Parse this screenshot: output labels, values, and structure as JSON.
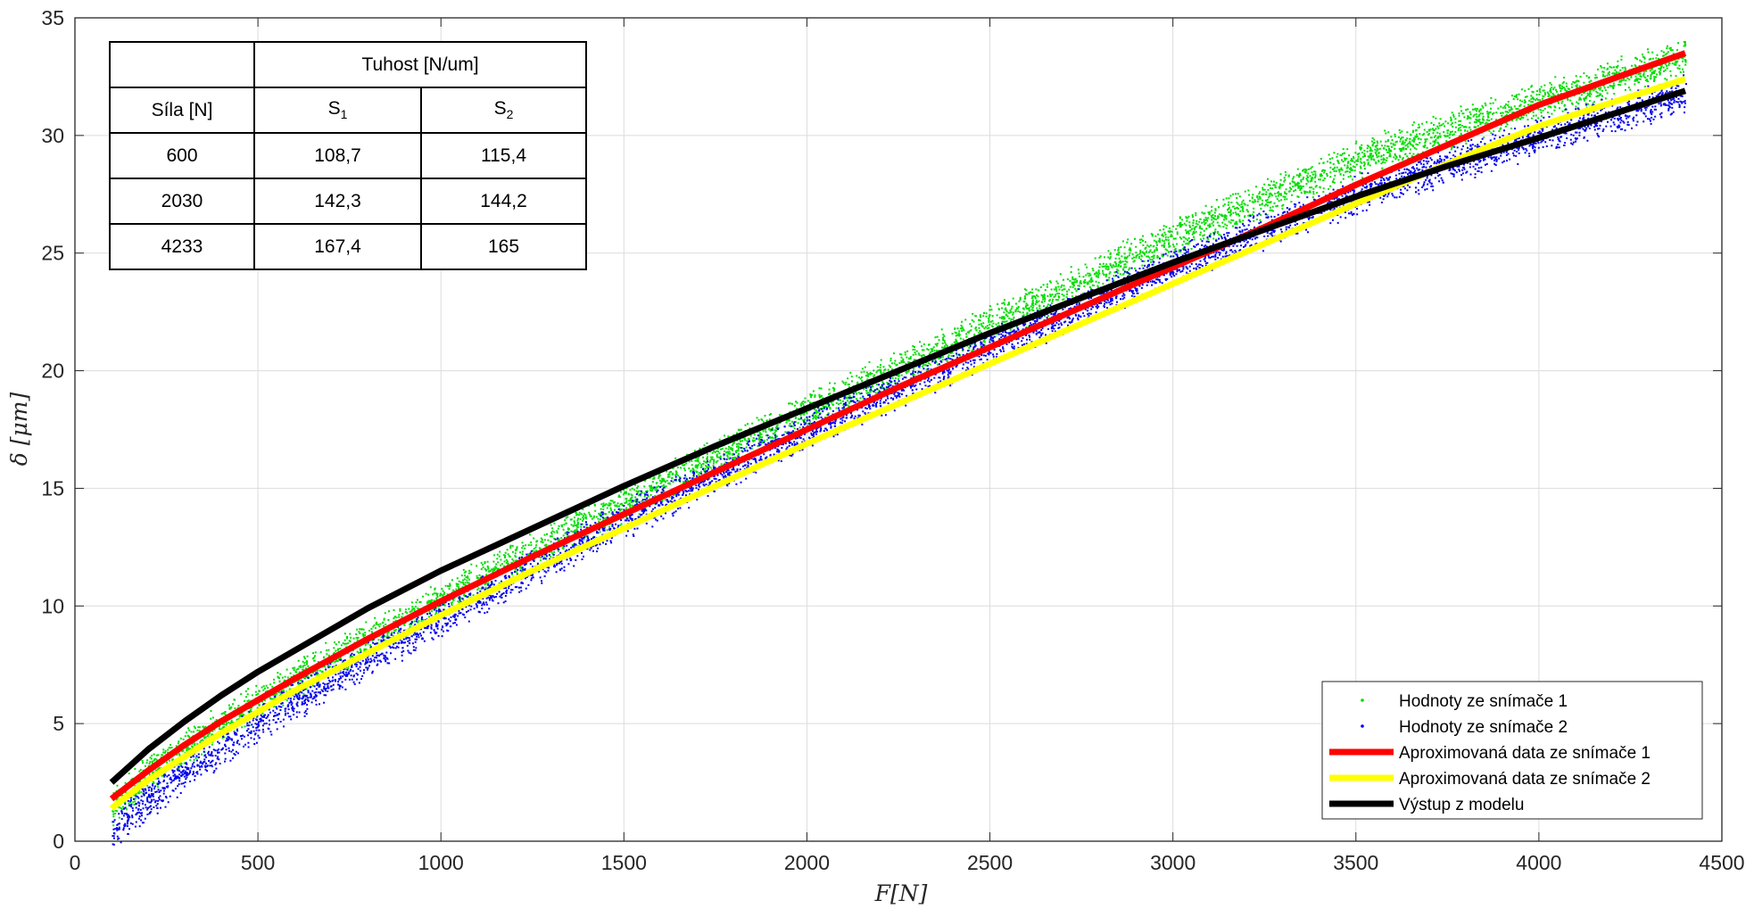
{
  "chart_data": {
    "type": "scatter",
    "xlabel": "F[N]",
    "ylabel": "δ [μm]",
    "xlim": [
      0,
      4500
    ],
    "ylim": [
      0,
      35
    ],
    "xticks": [
      "0",
      "500",
      "1000",
      "1500",
      "2000",
      "2500",
      "3000",
      "3500",
      "4000",
      "4500"
    ],
    "yticks": [
      "0",
      "5",
      "10",
      "15",
      "20",
      "25",
      "30",
      "35"
    ],
    "grid": true,
    "legend_position": "bottom-right",
    "series": [
      {
        "name": "Hodnoty ze snímače 1",
        "kind": "points",
        "color": "#00dd00",
        "x": [
          100,
          200,
          300,
          400,
          500,
          600,
          800,
          1000,
          1200,
          1500,
          1800,
          2000,
          2500,
          3000,
          3500,
          4000,
          4400
        ],
        "y": [
          1.5,
          2.9,
          4.0,
          5.0,
          6.0,
          6.9,
          8.6,
          10.3,
          11.9,
          14.4,
          16.8,
          18.3,
          22.0,
          25.7,
          29.0,
          31.5,
          33.3
        ]
      },
      {
        "name": "Hodnoty ze snímače 2",
        "kind": "points",
        "color": "#0000ee",
        "x": [
          100,
          200,
          300,
          400,
          500,
          600,
          800,
          1000,
          1200,
          1500,
          1800,
          2000,
          2500,
          3000,
          3500,
          4000,
          4400
        ],
        "y": [
          0.5,
          1.8,
          3.0,
          4.0,
          5.0,
          6.0,
          7.8,
          9.5,
          11.2,
          13.7,
          16.0,
          17.5,
          21.0,
          24.5,
          27.5,
          30.0,
          31.8
        ]
      },
      {
        "name": "Aproximovaná data ze snímače 1",
        "kind": "line",
        "color": "#ff0000",
        "x": [
          100,
          200,
          300,
          400,
          500,
          600,
          800,
          1000,
          1250,
          1500,
          1750,
          2000,
          2250,
          2500,
          2750,
          3000,
          3250,
          3500,
          3750,
          4000,
          4200,
          4400
        ],
        "y": [
          1.8,
          3.0,
          4.1,
          5.1,
          6.0,
          6.9,
          8.6,
          10.2,
          12.1,
          13.9,
          15.7,
          17.5,
          19.3,
          21.0,
          22.7,
          24.4,
          26.1,
          27.9,
          29.6,
          31.3,
          32.4,
          33.5
        ]
      },
      {
        "name": "Aproximovaná data ze snímače 2",
        "kind": "line",
        "color": "#ffff00",
        "x": [
          100,
          200,
          300,
          400,
          500,
          600,
          800,
          1000,
          1250,
          1500,
          1750,
          2000,
          2250,
          2500,
          2750,
          3000,
          3250,
          3500,
          3750,
          4000,
          4200,
          4400
        ],
        "y": [
          1.4,
          2.6,
          3.6,
          4.6,
          5.5,
          6.4,
          8.0,
          9.6,
          11.5,
          13.3,
          15.1,
          16.9,
          18.6,
          20.3,
          22.0,
          23.7,
          25.4,
          27.1,
          28.8,
          30.4,
          31.4,
          32.4
        ]
      },
      {
        "name": "Výstup z modelu",
        "kind": "line",
        "color": "#000000",
        "x": [
          100,
          200,
          300,
          400,
          500,
          600,
          800,
          1000,
          1250,
          1500,
          1750,
          2000,
          2250,
          2500,
          2750,
          3000,
          3250,
          3500,
          3750,
          4000,
          4200,
          4400
        ],
        "y": [
          2.5,
          3.9,
          5.1,
          6.2,
          7.2,
          8.1,
          9.9,
          11.5,
          13.3,
          15.1,
          16.8,
          18.4,
          20.0,
          21.6,
          23.1,
          24.6,
          26.0,
          27.4,
          28.7,
          29.9,
          30.9,
          31.9
        ]
      }
    ],
    "table": {
      "header_top": "Tuhost [N/um]",
      "header_force": "Síla [N]",
      "header_s1": "S",
      "header_s1_sub": "1",
      "header_s2": "S",
      "header_s2_sub": "2",
      "rows": [
        {
          "force": "600",
          "s1": "108,7",
          "s2": "115,4"
        },
        {
          "force": "2030",
          "s1": "142,3",
          "s2": "144,2"
        },
        {
          "force": "4233",
          "s1": "167,4",
          "s2": "165"
        }
      ]
    }
  }
}
